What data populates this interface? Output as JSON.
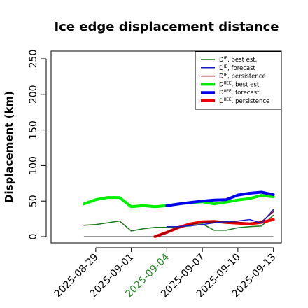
{
  "chart_data": {
    "type": "line",
    "title": "Ice edge displacement distance",
    "ylabel": "Displacement (km)",
    "xlabel": "",
    "ylim": [
      0,
      250
    ],
    "yticks": [
      0,
      50,
      100,
      150,
      200,
      250
    ],
    "x": [
      "2025-08-27",
      "2025-08-28",
      "2025-08-29",
      "2025-08-30",
      "2025-08-31",
      "2025-09-01",
      "2025-09-02",
      "2025-09-03",
      "2025-09-04",
      "2025-09-05",
      "2025-09-06",
      "2025-09-07",
      "2025-09-08",
      "2025-09-09",
      "2025-09-10",
      "2025-09-11",
      "2025-09-12",
      "2025-09-13"
    ],
    "xtick_labels": [
      {
        "label": "2025-08-29",
        "color": "#000000"
      },
      {
        "label": "2025-09-01",
        "color": "#000000"
      },
      {
        "label": "2025-09-04",
        "color": "#228B22"
      },
      {
        "label": "2025-09-07",
        "color": "#000000"
      },
      {
        "label": "2025-09-10",
        "color": "#000000"
      },
      {
        "label": "2025-09-13",
        "color": "#000000"
      }
    ],
    "legend_position": "top-right",
    "grid": false,
    "series": [
      {
        "name": "D^IE, best est.",
        "legend_sup": "IE",
        "legend_suffix": ", best est.",
        "color": "#1a7a1a",
        "width": 1.5,
        "x": [
          "2025-08-28",
          "2025-08-29",
          "2025-08-30",
          "2025-08-31",
          "2025-09-01",
          "2025-09-02",
          "2025-09-03",
          "2025-09-04",
          "2025-09-05",
          "2025-09-06",
          "2025-09-07",
          "2025-09-08",
          "2025-09-09",
          "2025-09-10",
          "2025-09-11",
          "2025-09-12",
          "2025-09-13"
        ],
        "values": [
          16,
          17,
          19.5,
          22,
          8,
          11,
          13,
          13,
          14,
          15,
          18,
          9,
          9,
          12.5,
          14,
          15,
          30
        ]
      },
      {
        "name": "D^IE, forecast",
        "legend_sup": "IE",
        "legend_suffix": ", forecast",
        "color": "#1a1acd",
        "width": 1.5,
        "x": [
          "2025-09-04",
          "2025-09-05",
          "2025-09-06",
          "2025-09-07",
          "2025-09-08",
          "2025-09-09",
          "2025-09-10",
          "2025-09-11",
          "2025-09-12",
          "2025-09-13"
        ],
        "values": [
          14,
          14,
          15.5,
          17,
          19.5,
          21,
          22,
          24,
          19,
          38
        ]
      },
      {
        "name": "D^IE, persistence",
        "legend_sup": "IE",
        "legend_suffix": ", persistence",
        "color": "#8b0000",
        "width": 1.5,
        "x": [
          "2025-09-03",
          "2025-09-04",
          "2025-09-05",
          "2025-09-06",
          "2025-09-07",
          "2025-09-08",
          "2025-09-09",
          "2025-09-10",
          "2025-09-11",
          "2025-09-12",
          "2025-09-13"
        ],
        "values": [
          0,
          6,
          13,
          17,
          20,
          21,
          21,
          20,
          19,
          21,
          35
        ]
      },
      {
        "name": "D^IIEE, best est.",
        "legend_sup": "IIEE",
        "legend_suffix": ", best est.",
        "color": "#00ee00",
        "width": 4,
        "x": [
          "2025-08-28",
          "2025-08-29",
          "2025-08-30",
          "2025-08-31",
          "2025-09-01",
          "2025-09-02",
          "2025-09-03",
          "2025-09-04",
          "2025-09-05",
          "2025-09-06",
          "2025-09-07",
          "2025-09-08",
          "2025-09-09",
          "2025-09-10",
          "2025-09-11",
          "2025-09-12",
          "2025-09-13"
        ],
        "values": [
          46,
          52,
          55,
          55,
          42,
          43.5,
          42,
          43.5,
          46,
          48,
          49,
          46,
          48.5,
          51.5,
          53.5,
          58,
          56
        ]
      },
      {
        "name": "D^IIEE, forecast",
        "legend_sup": "IIEE",
        "legend_suffix": ", forecast",
        "color": "#0000ee",
        "width": 4,
        "x": [
          "2025-09-04",
          "2025-09-05",
          "2025-09-06",
          "2025-09-07",
          "2025-09-08",
          "2025-09-09",
          "2025-09-10",
          "2025-09-11",
          "2025-09-12",
          "2025-09-13"
        ],
        "values": [
          43.5,
          46,
          48,
          50,
          51.5,
          52,
          58.5,
          61,
          62.5,
          59
        ]
      },
      {
        "name": "D^IIEE, persistence",
        "legend_sup": "IIEE",
        "legend_suffix": ", persistence",
        "color": "#ee0000",
        "width": 4,
        "x": [
          "2025-09-03",
          "2025-09-04",
          "2025-09-05",
          "2025-09-06",
          "2025-09-07",
          "2025-09-08",
          "2025-09-09",
          "2025-09-10",
          "2025-09-11",
          "2025-09-12",
          "2025-09-13"
        ],
        "values": [
          0,
          6,
          13,
          18,
          21,
          21.5,
          20,
          19,
          18,
          20,
          24
        ]
      }
    ],
    "baseline": {
      "color": "#333333",
      "x_from": "2025-08-28",
      "x_to": "2025-09-13",
      "value": 0
    }
  }
}
